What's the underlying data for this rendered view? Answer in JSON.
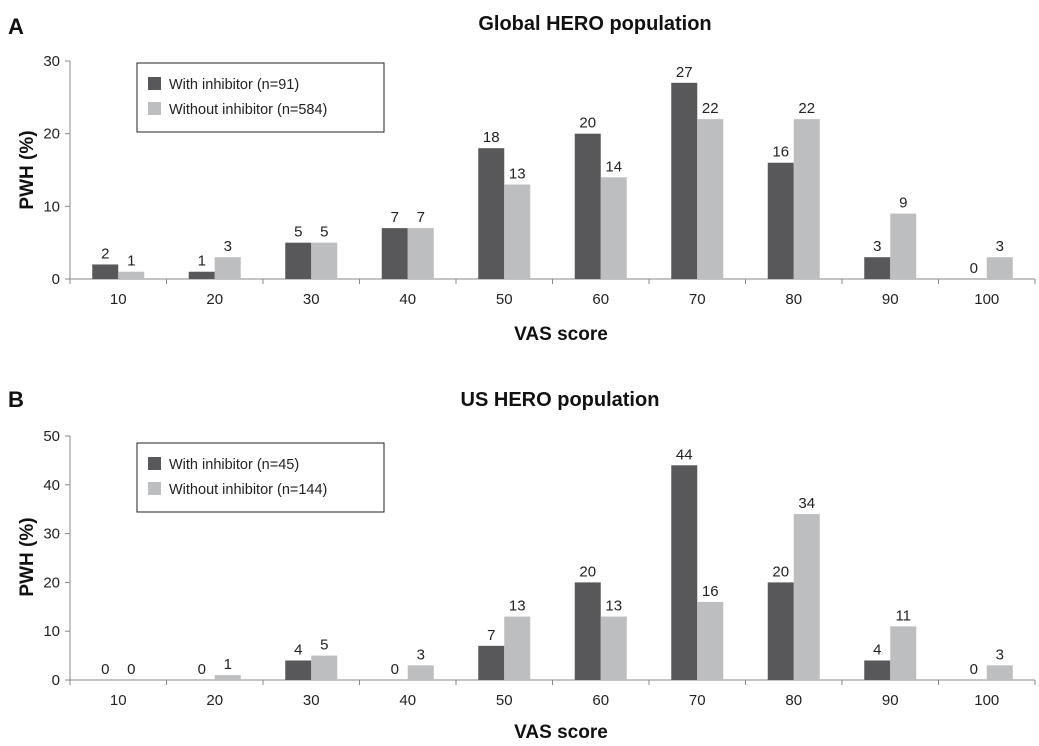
{
  "chart_data": [
    {
      "type": "bar",
      "panel": "A",
      "title": "Global HERO population",
      "xlabel": "VAS score",
      "ylabel": "PWH (%)",
      "ylim": [
        0,
        30
      ],
      "yticks": [
        0,
        10,
        20,
        30
      ],
      "categories": [
        "10",
        "20",
        "30",
        "40",
        "50",
        "60",
        "70",
        "80",
        "90",
        "100"
      ],
      "series": [
        {
          "name": "With inhibitor (n=91)",
          "color": "#58585a",
          "values": [
            2,
            1,
            5,
            7,
            18,
            20,
            27,
            16,
            3,
            0
          ]
        },
        {
          "name": "Without inhibitor (n=584)",
          "color": "#bcbec0",
          "values": [
            1,
            3,
            5,
            7,
            13,
            14,
            22,
            22,
            9,
            3
          ]
        }
      ],
      "legend": "top-left",
      "grid": false
    },
    {
      "type": "bar",
      "panel": "B",
      "title": "US HERO population",
      "xlabel": "VAS score",
      "ylabel": "PWH (%)",
      "ylim": [
        0,
        50
      ],
      "yticks": [
        0,
        10,
        20,
        30,
        40,
        50
      ],
      "categories": [
        "10",
        "20",
        "30",
        "40",
        "50",
        "60",
        "70",
        "80",
        "90",
        "100"
      ],
      "series": [
        {
          "name": "With inhibitor (n=45)",
          "color": "#58585a",
          "values": [
            0,
            0,
            4,
            0,
            7,
            20,
            44,
            20,
            4,
            0
          ]
        },
        {
          "name": "Without inhibitor (n=144)",
          "color": "#bcbec0",
          "values": [
            0,
            1,
            5,
            3,
            13,
            13,
            16,
            34,
            11,
            3
          ]
        }
      ],
      "legend": "top-left",
      "grid": false
    }
  ]
}
